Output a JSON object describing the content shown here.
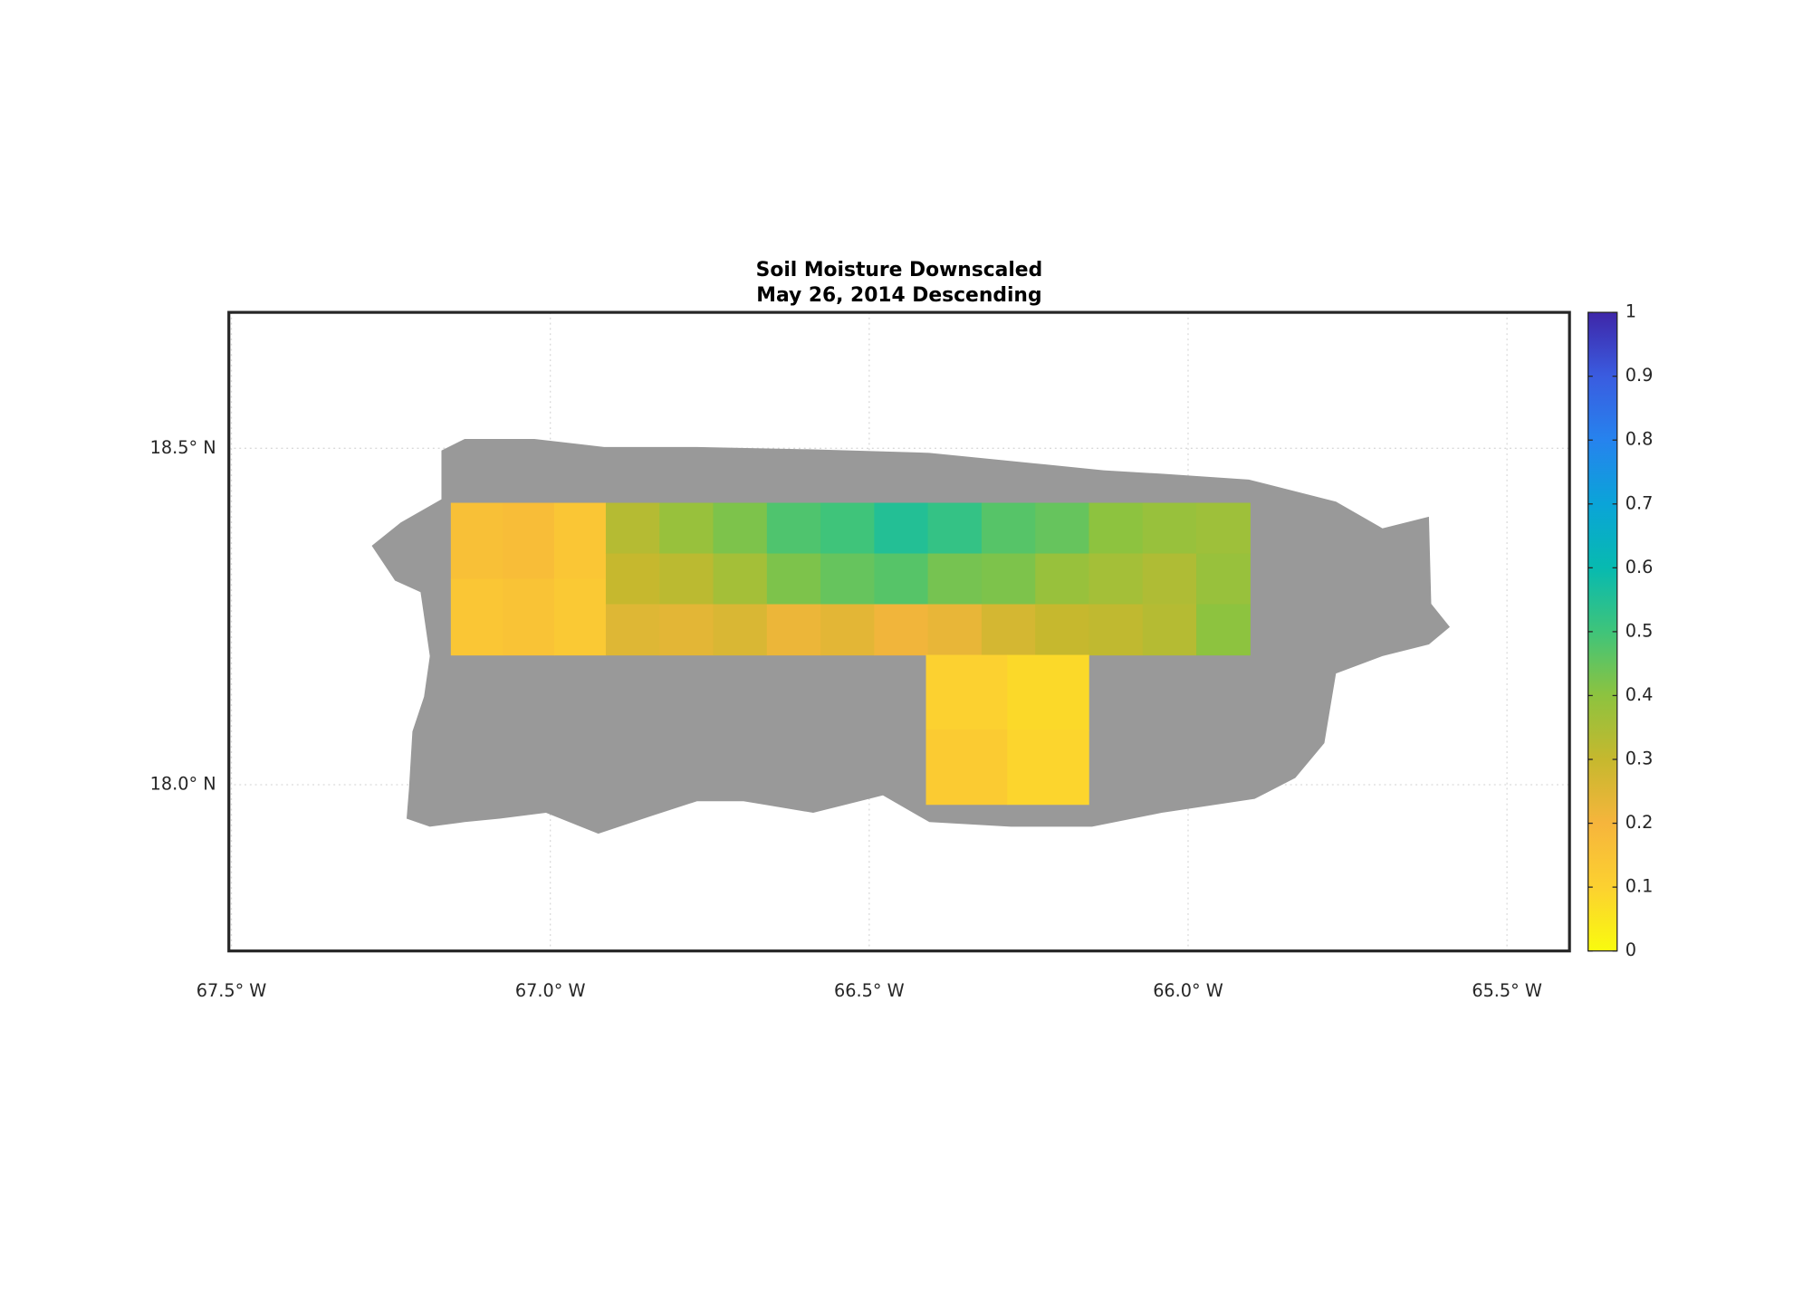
{
  "chart_data": {
    "type": "map",
    "title": [
      "Soil Moisture Downscaled",
      "May 26, 2014 Descending"
    ],
    "xlim": [
      -67.504,
      -65.402
    ],
    "ylim": [
      17.753,
      18.702
    ],
    "xticks": [
      {
        "value": -67.5,
        "label": "67.5° W"
      },
      {
        "value": -67.0,
        "label": "67.0° W"
      },
      {
        "value": -66.5,
        "label": "66.5° W"
      },
      {
        "value": -66.0,
        "label": "66.0° W"
      },
      {
        "value": -65.5,
        "label": "65.5° W"
      }
    ],
    "yticks": [
      {
        "value": 18.0,
        "label": "18.0° N"
      },
      {
        "value": 18.5,
        "label": "18.5° N"
      }
    ],
    "grid": true,
    "land_color": "#999999",
    "clim": [
      0,
      1
    ],
    "cticks": [
      0,
      0.1,
      0.2,
      0.3,
      0.4,
      0.5,
      0.6,
      0.7,
      0.8,
      0.9,
      1
    ],
    "colormap": [
      "#f9fb0e",
      "#fcd130",
      "#f6b53c",
      "#c6b82e",
      "#8dc33f",
      "#3fc47a",
      "#07bab0",
      "#0aa4d8",
      "#2683ee",
      "#3a5ce0",
      "#3e26a8"
    ],
    "regions": [
      {
        "lon": [
          -67.156,
          -66.913
        ],
        "lat": [
          18.193,
          18.419
        ],
        "values": [
          [
            0.16,
            0.17,
            0.14
          ],
          [
            0.14,
            0.15,
            0.13
          ]
        ]
      },
      {
        "lon": [
          -66.913,
          -65.903
        ],
        "lat": [
          18.193,
          18.419
        ],
        "values": [
          [
            0.33,
            0.38,
            0.42,
            0.48,
            0.5,
            0.55,
            0.52,
            0.47,
            0.45,
            0.4,
            0.38,
            0.37
          ],
          [
            0.3,
            0.32,
            0.36,
            0.42,
            0.45,
            0.47,
            0.43,
            0.42,
            0.38,
            0.36,
            0.34,
            0.38
          ],
          [
            0.25,
            0.24,
            0.26,
            0.22,
            0.24,
            0.21,
            0.23,
            0.27,
            0.3,
            0.31,
            0.33,
            0.4
          ]
        ]
      },
      {
        "lon": [
          -66.411,
          -66.156
        ],
        "lat": [
          17.971,
          18.193
        ],
        "values": [
          [
            0.1,
            0.08
          ],
          [
            0.12,
            0.09
          ]
        ]
      }
    ]
  }
}
